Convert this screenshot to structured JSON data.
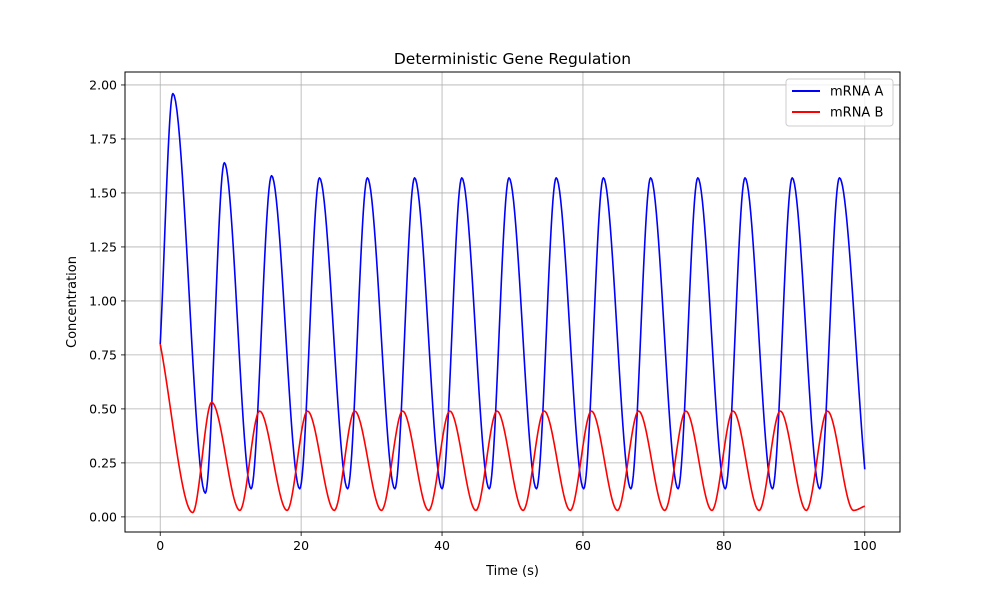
{
  "chart_data": {
    "type": "line",
    "title": "Deterministic Gene Regulation",
    "xlabel": "Time (s)",
    "ylabel": "Concentration",
    "xlim": [
      -5,
      105
    ],
    "ylim": [
      -0.07,
      2.06
    ],
    "xticks": [
      0,
      20,
      40,
      60,
      80,
      100
    ],
    "xtick_labels": [
      "0",
      "20",
      "40",
      "60",
      "80",
      "100"
    ],
    "yticks": [
      0,
      0.25,
      0.5,
      0.75,
      1.0,
      1.25,
      1.5,
      1.75,
      2.0
    ],
    "ytick_labels": [
      "0.00",
      "0.25",
      "0.50",
      "0.75",
      "1.00",
      "1.25",
      "1.50",
      "1.75",
      "2.00"
    ],
    "grid": true,
    "legend": "upper right",
    "series": [
      {
        "name": "mRNA A",
        "color": "#0000ff",
        "x": [
          0,
          1.8,
          6.4,
          9.1,
          12.9,
          15.8,
          19.8,
          22.6,
          26.6,
          29.4,
          33.3,
          36.1,
          40.0,
          42.8,
          46.7,
          49.5,
          53.4,
          56.2,
          60.1,
          62.9,
          66.8,
          69.6,
          73.5,
          76.3,
          80.2,
          83.0,
          86.9,
          89.7,
          93.6,
          96.4,
          100
        ],
        "y": [
          0.8,
          1.96,
          0.11,
          1.64,
          0.13,
          1.58,
          0.13,
          1.57,
          0.13,
          1.57,
          0.13,
          1.57,
          0.13,
          1.57,
          0.13,
          1.57,
          0.13,
          1.57,
          0.13,
          1.57,
          0.13,
          1.57,
          0.13,
          1.57,
          0.13,
          1.57,
          0.13,
          1.57,
          0.13,
          1.57,
          0.22
        ]
      },
      {
        "name": "mRNA B",
        "color": "#ff0000",
        "x": [
          0,
          4.6,
          7.3,
          11.3,
          14.1,
          18.0,
          20.9,
          24.7,
          27.6,
          31.4,
          34.4,
          38.1,
          41.1,
          44.8,
          47.8,
          51.5,
          54.5,
          58.2,
          61.2,
          64.9,
          67.9,
          71.6,
          74.6,
          78.3,
          81.3,
          85.0,
          88.0,
          91.7,
          94.7,
          98.4,
          100
        ],
        "y": [
          0.8,
          0.02,
          0.53,
          0.03,
          0.49,
          0.03,
          0.49,
          0.03,
          0.49,
          0.03,
          0.49,
          0.03,
          0.49,
          0.03,
          0.49,
          0.03,
          0.49,
          0.03,
          0.49,
          0.03,
          0.49,
          0.03,
          0.49,
          0.03,
          0.49,
          0.03,
          0.49,
          0.03,
          0.49,
          0.03,
          0.05
        ]
      }
    ]
  }
}
